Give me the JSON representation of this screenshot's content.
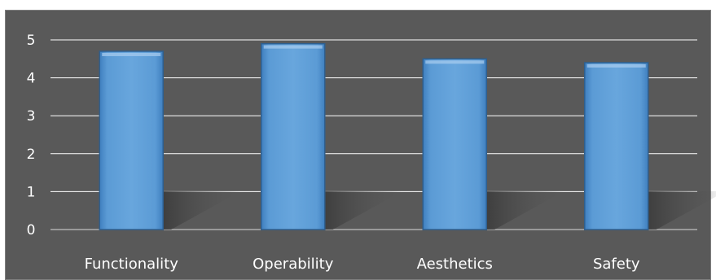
{
  "chart_data": {
    "type": "bar",
    "categories": [
      "Functionality",
      "Operability",
      "Aesthetics",
      "Safety"
    ],
    "values": [
      4.7,
      4.9,
      4.5,
      4.4
    ],
    "yticks": [
      "0",
      "1",
      "2",
      "3",
      "4",
      "5"
    ],
    "ylim": [
      0,
      5
    ],
    "grid": true,
    "legend": "none",
    "colors": {
      "bar": "#5b9bd5",
      "bar_edge": "#2e5f8f",
      "bar_highlight": "#a9cdf0",
      "background": "#595959",
      "grid": "#ffffff",
      "text": "#ffffff"
    }
  }
}
